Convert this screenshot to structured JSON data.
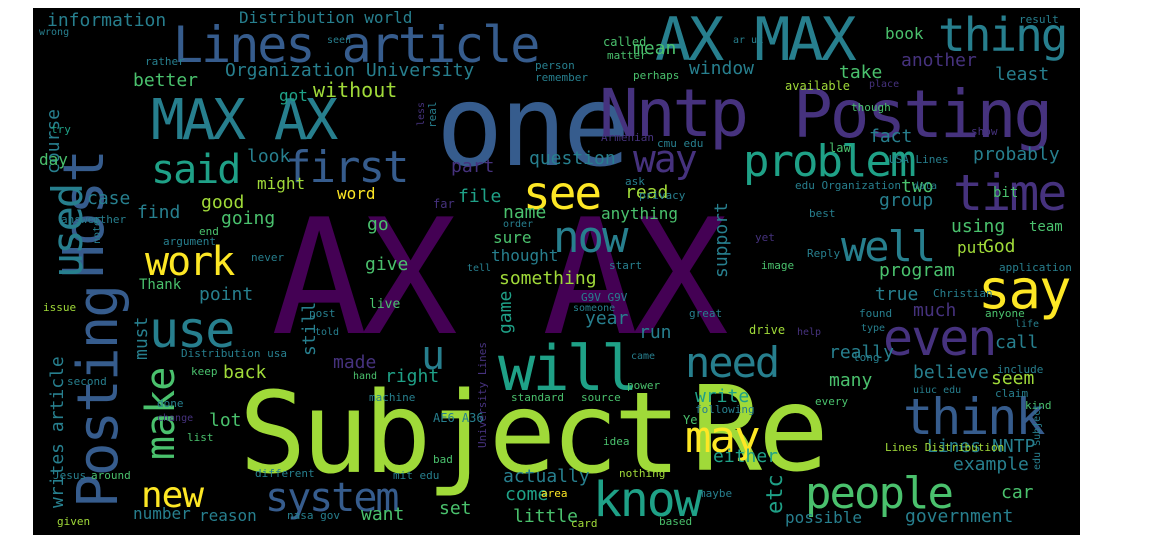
{
  "background": "#000000",
  "palette": [
    "#440154",
    "#46327e",
    "#365c8d",
    "#277f8e",
    "#1fa187",
    "#4ac16d",
    "#a0da39",
    "#fde725"
  ],
  "words": [
    {
      "text": "AX AX",
      "color": "#440154"
    },
    {
      "text": "Subject",
      "color": "#a0da39"
    },
    {
      "text": "Re",
      "color": "#a0da39"
    },
    {
      "text": "one",
      "color": "#365c8d"
    },
    {
      "text": "Nntp",
      "color": "#46327e"
    },
    {
      "text": "Posting",
      "color": "#46327e"
    },
    {
      "text": "Host",
      "color": "#365c8d"
    },
    {
      "text": "Posting",
      "color": "#365c8d"
    },
    {
      "text": "AX MAX",
      "color": "#277f8e"
    },
    {
      "text": "MAX AX",
      "color": "#277f8e"
    },
    {
      "text": "Lines article",
      "color": "#365c8d"
    },
    {
      "text": "thing",
      "color": "#277f8e"
    },
    {
      "text": "will",
      "color": "#1fa187"
    },
    {
      "text": "think",
      "color": "#365c8d"
    },
    {
      "text": "say",
      "color": "#fde725"
    },
    {
      "text": "use",
      "color": "#277f8e"
    },
    {
      "text": "used",
      "color": "#277f8e"
    },
    {
      "text": "people",
      "color": "#4ac16d"
    },
    {
      "text": "know",
      "color": "#1fa187"
    },
    {
      "text": "even",
      "color": "#46327e"
    },
    {
      "text": "time",
      "color": "#46327e"
    },
    {
      "text": "problem",
      "color": "#1fa187"
    },
    {
      "text": "first",
      "color": "#365c8d"
    },
    {
      "text": "said",
      "color": "#1fa187"
    },
    {
      "text": "see",
      "color": "#fde725"
    },
    {
      "text": "now",
      "color": "#277f8e"
    },
    {
      "text": "well",
      "color": "#277f8e"
    },
    {
      "text": "work",
      "color": "#fde725"
    },
    {
      "text": "make",
      "color": "#4ac16d"
    },
    {
      "text": "need",
      "color": "#277f8e"
    },
    {
      "text": "may",
      "color": "#fde725"
    },
    {
      "text": "system",
      "color": "#365c8d"
    },
    {
      "text": "new",
      "color": "#fde725"
    },
    {
      "text": "way",
      "color": "#46327e"
    },
    {
      "text": "u",
      "color": "#277f8e"
    },
    {
      "text": "writes article",
      "color": "#277f8e"
    },
    {
      "text": "information",
      "color": "#277f8e"
    },
    {
      "text": "Distribution world",
      "color": "#277f8e"
    },
    {
      "text": "Organization University",
      "color": "#277f8e"
    },
    {
      "text": "better",
      "color": "#4ac16d"
    },
    {
      "text": "got",
      "color": "#1fa187"
    },
    {
      "text": "without",
      "color": "#a0da39"
    },
    {
      "text": "mean",
      "color": "#4ac16d"
    },
    {
      "text": "window",
      "color": "#277f8e"
    },
    {
      "text": "take",
      "color": "#4ac16d"
    },
    {
      "text": "another",
      "color": "#46327e"
    },
    {
      "text": "least",
      "color": "#277f8e"
    },
    {
      "text": "book",
      "color": "#4ac16d"
    },
    {
      "text": "look",
      "color": "#277f8e"
    },
    {
      "text": "question",
      "color": "#277f8e"
    },
    {
      "text": "fact",
      "color": "#277f8e"
    },
    {
      "text": "probably",
      "color": "#277f8e"
    },
    {
      "text": "case",
      "color": "#277f8e"
    },
    {
      "text": "might",
      "color": "#a0da39"
    },
    {
      "text": "part",
      "color": "#46327e"
    },
    {
      "text": "file",
      "color": "#1fa187"
    },
    {
      "text": "read",
      "color": "#a0da39"
    },
    {
      "text": "two",
      "color": "#4ac16d"
    },
    {
      "text": "group",
      "color": "#277f8e"
    },
    {
      "text": "find",
      "color": "#277f8e"
    },
    {
      "text": "good",
      "color": "#a0da39"
    },
    {
      "text": "going",
      "color": "#4ac16d"
    },
    {
      "text": "word",
      "color": "#fde725"
    },
    {
      "text": "name",
      "color": "#4ac16d"
    },
    {
      "text": "support",
      "color": "#277f8e"
    },
    {
      "text": "using",
      "color": "#4ac16d"
    },
    {
      "text": "course",
      "color": "#277f8e"
    },
    {
      "text": "day",
      "color": "#4ac16d"
    },
    {
      "text": "go",
      "color": "#4ac16d"
    },
    {
      "text": "anything",
      "color": "#4ac16d"
    },
    {
      "text": "sure",
      "color": "#4ac16d"
    },
    {
      "text": "put",
      "color": "#a0da39"
    },
    {
      "text": "God",
      "color": "#a0da39"
    },
    {
      "text": "give",
      "color": "#4ac16d"
    },
    {
      "text": "thought",
      "color": "#277f8e"
    },
    {
      "text": "program",
      "color": "#4ac16d"
    },
    {
      "text": "something",
      "color": "#a0da39"
    },
    {
      "text": "point",
      "color": "#277f8e"
    },
    {
      "text": "true",
      "color": "#277f8e"
    },
    {
      "text": "game",
      "color": "#1fa187"
    },
    {
      "text": "much",
      "color": "#46327e"
    },
    {
      "text": "year",
      "color": "#277f8e"
    },
    {
      "text": "run",
      "color": "#277f8e"
    },
    {
      "text": "must",
      "color": "#277f8e"
    },
    {
      "text": "made",
      "color": "#46327e"
    },
    {
      "text": "really",
      "color": "#277f8e"
    },
    {
      "text": "call",
      "color": "#277f8e"
    },
    {
      "text": "back",
      "color": "#a0da39"
    },
    {
      "text": "right",
      "color": "#1fa187"
    },
    {
      "text": "believe",
      "color": "#277f8e"
    },
    {
      "text": "seem",
      "color": "#a0da39"
    },
    {
      "text": "many",
      "color": "#4ac16d"
    },
    {
      "text": "still",
      "color": "#277f8e"
    },
    {
      "text": "write",
      "color": "#1fa187"
    },
    {
      "text": "lot",
      "color": "#4ac16d"
    },
    {
      "text": "either",
      "color": "#1fa187"
    },
    {
      "text": "Lines NNTP",
      "color": "#277f8e"
    },
    {
      "text": "example",
      "color": "#277f8e"
    },
    {
      "text": "actually",
      "color": "#277f8e"
    },
    {
      "text": "etc",
      "color": "#1fa187"
    },
    {
      "text": "come",
      "color": "#1fa187"
    },
    {
      "text": "car",
      "color": "#4ac16d"
    },
    {
      "text": "number",
      "color": "#277f8e"
    },
    {
      "text": "reason",
      "color": "#277f8e"
    },
    {
      "text": "want",
      "color": "#4ac16d"
    },
    {
      "text": "set",
      "color": "#4ac16d"
    },
    {
      "text": "little",
      "color": "#4ac16d"
    },
    {
      "text": "possible",
      "color": "#277f8e"
    },
    {
      "text": "government",
      "color": "#277f8e"
    },
    {
      "text": "Thank",
      "color": "#4ac16d"
    },
    {
      "text": "wrong",
      "color": "#277f8e"
    },
    {
      "text": "rather",
      "color": "#277f8e"
    },
    {
      "text": "try",
      "color": "#1fa187"
    },
    {
      "text": "seen",
      "color": "#277f8e"
    },
    {
      "text": "person",
      "color": "#277f8e"
    },
    {
      "text": "remember",
      "color": "#277f8e"
    },
    {
      "text": "called",
      "color": "#4ac16d"
    },
    {
      "text": "matter",
      "color": "#4ac16d"
    },
    {
      "text": "perhaps",
      "color": "#4ac16d"
    },
    {
      "text": "available",
      "color": "#a0da39"
    },
    {
      "text": "place",
      "color": "#46327e"
    },
    {
      "text": "result",
      "color": "#277f8e"
    },
    {
      "text": "ar uk",
      "color": "#277f8e"
    },
    {
      "text": "though",
      "color": "#4ac16d"
    },
    {
      "text": "show",
      "color": "#46327e"
    },
    {
      "text": "Armenian",
      "color": "#46327e"
    },
    {
      "text": "cmu edu",
      "color": "#277f8e"
    },
    {
      "text": "USA Lines",
      "color": "#277f8e"
    },
    {
      "text": "law",
      "color": "#4ac16d"
    },
    {
      "text": "ask",
      "color": "#277f8e"
    },
    {
      "text": "privacy",
      "color": "#277f8e"
    },
    {
      "text": "edu Organization",
      "color": "#277f8e"
    },
    {
      "text": "data",
      "color": "#277f8e"
    },
    {
      "text": "bit",
      "color": "#4ac16d"
    },
    {
      "text": "far",
      "color": "#46327e"
    },
    {
      "text": "answer",
      "color": "#277f8e"
    },
    {
      "text": "other",
      "color": "#277f8e"
    },
    {
      "text": "note",
      "color": "#277f8e"
    },
    {
      "text": "end",
      "color": "#4ac16d"
    },
    {
      "text": "argument",
      "color": "#277f8e"
    },
    {
      "text": "never",
      "color": "#277f8e"
    },
    {
      "text": "order",
      "color": "#277f8e"
    },
    {
      "text": "tell",
      "color": "#277f8e"
    },
    {
      "text": "start",
      "color": "#277f8e"
    },
    {
      "text": "yet",
      "color": "#46327e"
    },
    {
      "text": "best",
      "color": "#277f8e"
    },
    {
      "text": "Reply",
      "color": "#277f8e"
    },
    {
      "text": "application",
      "color": "#277f8e"
    },
    {
      "text": "team",
      "color": "#4ac16d"
    },
    {
      "text": "image",
      "color": "#4ac16d"
    },
    {
      "text": "issue",
      "color": "#a0da39"
    },
    {
      "text": "G9V G9V",
      "color": "#277f8e"
    },
    {
      "text": "someone",
      "color": "#277f8e"
    },
    {
      "text": "post",
      "color": "#277f8e"
    },
    {
      "text": "live",
      "color": "#4ac16d"
    },
    {
      "text": "told",
      "color": "#277f8e"
    },
    {
      "text": "great",
      "color": "#277f8e"
    },
    {
      "text": "drive",
      "color": "#a0da39"
    },
    {
      "text": "help",
      "color": "#46327e"
    },
    {
      "text": "found",
      "color": "#277f8e"
    },
    {
      "text": "Christian",
      "color": "#277f8e"
    },
    {
      "text": "anyone",
      "color": "#4ac16d"
    },
    {
      "text": "life",
      "color": "#277f8e"
    },
    {
      "text": "type",
      "color": "#277f8e"
    },
    {
      "text": "long",
      "color": "#277f8e"
    },
    {
      "text": "Distribution usa",
      "color": "#277f8e"
    },
    {
      "text": "second",
      "color": "#277f8e"
    },
    {
      "text": "keep",
      "color": "#4ac16d"
    },
    {
      "text": "hand",
      "color": "#4ac16d"
    },
    {
      "text": "University Lines",
      "color": "#46327e"
    },
    {
      "text": "came",
      "color": "#277f8e"
    },
    {
      "text": "power",
      "color": "#4ac16d"
    },
    {
      "text": "include",
      "color": "#277f8e"
    },
    {
      "text": "uiuc edu",
      "color": "#277f8e"
    },
    {
      "text": "done",
      "color": "#277f8e"
    },
    {
      "text": "machine",
      "color": "#277f8e"
    },
    {
      "text": "standard",
      "color": "#4ac16d"
    },
    {
      "text": "source",
      "color": "#4ac16d"
    },
    {
      "text": "every",
      "color": "#4ac16d"
    },
    {
      "text": "claim",
      "color": "#277f8e"
    },
    {
      "text": "kind",
      "color": "#4ac16d"
    },
    {
      "text": "AE6 A36",
      "color": "#277f8e"
    },
    {
      "text": "Ye",
      "color": "#4ac16d"
    },
    {
      "text": "following",
      "color": "#277f8e"
    },
    {
      "text": "change",
      "color": "#46327e"
    },
    {
      "text": "list",
      "color": "#4ac16d"
    },
    {
      "text": "idea",
      "color": "#4ac16d"
    },
    {
      "text": "Lines Distribution",
      "color": "#a0da39"
    },
    {
      "text": "edu Subject",
      "color": "#277f8e"
    },
    {
      "text": "Jesus",
      "color": "#277f8e"
    },
    {
      "text": "around",
      "color": "#4ac16d"
    },
    {
      "text": "different",
      "color": "#277f8e"
    },
    {
      "text": "mit edu",
      "color": "#277f8e"
    },
    {
      "text": "nothing",
      "color": "#a0da39"
    },
    {
      "text": "bad",
      "color": "#4ac16d"
    },
    {
      "text": "area",
      "color": "#fde725"
    },
    {
      "text": "maybe",
      "color": "#277f8e"
    },
    {
      "text": "given",
      "color": "#a0da39"
    },
    {
      "text": "nasa gov",
      "color": "#277f8e"
    },
    {
      "text": "card",
      "color": "#a0da39"
    },
    {
      "text": "based",
      "color": "#4ac16d"
    },
    {
      "text": "real",
      "color": "#277f8e"
    },
    {
      "text": "less",
      "color": "#46327e"
    }
  ]
}
